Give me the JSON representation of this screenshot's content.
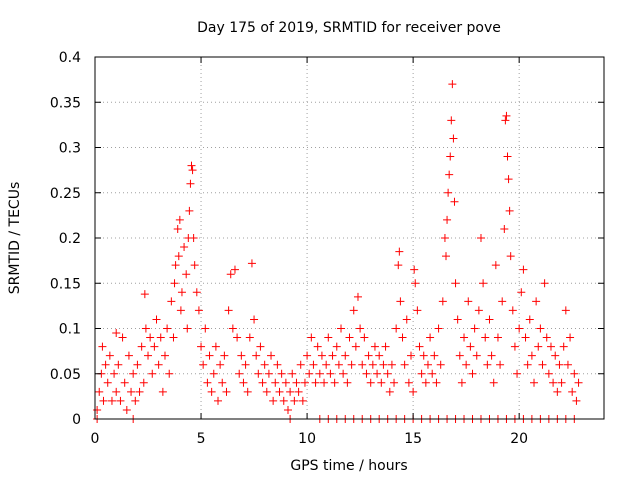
{
  "chart_data": {
    "type": "scatter",
    "title": "Day 175 of 2019, SRMTID for receiver pove",
    "xlabel": "GPS time / hours",
    "ylabel": "SRMTID / TECUs",
    "xlim": [
      0,
      24
    ],
    "ylim": [
      0,
      0.4
    ],
    "xticks": [
      0,
      5,
      10,
      15,
      20
    ],
    "yticks": [
      0,
      0.05,
      0.1,
      0.15,
      0.2,
      0.25,
      0.3,
      0.35,
      0.4
    ],
    "xtick_labels": [
      "0",
      "5",
      "10",
      "15",
      "20"
    ],
    "ytick_labels": [
      "0",
      "0.05",
      "0.1",
      "0.15",
      "0.2",
      "0.25",
      "0.3",
      "0.35",
      "0.4"
    ],
    "grid": true,
    "marker": "+",
    "color": "#ff0000",
    "series": [
      {
        "name": "SRMTID",
        "points": [
          [
            0.1,
            0.01
          ],
          [
            0.2,
            0.03
          ],
          [
            0.3,
            0.05
          ],
          [
            0.35,
            0.08
          ],
          [
            0.4,
            0.02
          ],
          [
            0.5,
            0.06
          ],
          [
            0.6,
            0.04
          ],
          [
            0.7,
            0.07
          ],
          [
            0.8,
            0.02
          ],
          [
            0.9,
            0.05
          ],
          [
            1.0,
            0.03
          ],
          [
            1.0,
            0.095
          ],
          [
            1.1,
            0.06
          ],
          [
            1.2,
            0.02
          ],
          [
            1.3,
            0.09
          ],
          [
            1.4,
            0.04
          ],
          [
            1.5,
            0.01
          ],
          [
            1.6,
            0.07
          ],
          [
            1.7,
            0.03
          ],
          [
            1.8,
            0.05
          ],
          [
            1.9,
            0.02
          ],
          [
            2.0,
            0.06
          ],
          [
            2.1,
            0.03
          ],
          [
            2.2,
            0.08
          ],
          [
            2.3,
            0.04
          ],
          [
            2.35,
            0.138
          ],
          [
            2.4,
            0.1
          ],
          [
            2.5,
            0.07
          ],
          [
            2.6,
            0.09
          ],
          [
            2.7,
            0.05
          ],
          [
            2.8,
            0.08
          ],
          [
            2.9,
            0.11
          ],
          [
            3.0,
            0.06
          ],
          [
            3.1,
            0.09
          ],
          [
            3.2,
            0.03
          ],
          [
            3.3,
            0.07
          ],
          [
            3.4,
            0.1
          ],
          [
            3.5,
            0.05
          ],
          [
            3.6,
            0.13
          ],
          [
            3.7,
            0.09
          ],
          [
            3.75,
            0.15
          ],
          [
            3.8,
            0.17
          ],
          [
            3.9,
            0.21
          ],
          [
            3.95,
            0.18
          ],
          [
            4.0,
            0.22
          ],
          [
            4.05,
            0.12
          ],
          [
            4.1,
            0.14
          ],
          [
            4.2,
            0.19
          ],
          [
            4.3,
            0.16
          ],
          [
            4.35,
            0.1
          ],
          [
            4.4,
            0.2
          ],
          [
            4.45,
            0.23
          ],
          [
            4.5,
            0.26
          ],
          [
            4.55,
            0.28
          ],
          [
            4.6,
            0.275
          ],
          [
            4.65,
            0.2
          ],
          [
            4.7,
            0.17
          ],
          [
            4.8,
            0.14
          ],
          [
            4.9,
            0.12
          ],
          [
            5.0,
            0.08
          ],
          [
            5.1,
            0.06
          ],
          [
            5.2,
            0.1
          ],
          [
            5.3,
            0.04
          ],
          [
            5.4,
            0.07
          ],
          [
            5.5,
            0.03
          ],
          [
            5.6,
            0.05
          ],
          [
            5.7,
            0.08
          ],
          [
            5.8,
            0.02
          ],
          [
            5.9,
            0.06
          ],
          [
            6.0,
            0.04
          ],
          [
            6.1,
            0.07
          ],
          [
            6.2,
            0.03
          ],
          [
            6.3,
            0.12
          ],
          [
            6.4,
            0.16
          ],
          [
            6.5,
            0.1
          ],
          [
            6.6,
            0.165
          ],
          [
            6.7,
            0.09
          ],
          [
            6.8,
            0.05
          ],
          [
            6.9,
            0.07
          ],
          [
            7.0,
            0.04
          ],
          [
            7.1,
            0.06
          ],
          [
            7.2,
            0.03
          ],
          [
            7.3,
            0.09
          ],
          [
            7.4,
            0.172
          ],
          [
            7.5,
            0.11
          ],
          [
            7.6,
            0.07
          ],
          [
            7.7,
            0.05
          ],
          [
            7.8,
            0.08
          ],
          [
            7.9,
            0.04
          ],
          [
            8.0,
            0.06
          ],
          [
            8.1,
            0.03
          ],
          [
            8.2,
            0.05
          ],
          [
            8.3,
            0.07
          ],
          [
            8.4,
            0.02
          ],
          [
            8.5,
            0.04
          ],
          [
            8.6,
            0.06
          ],
          [
            8.7,
            0.03
          ],
          [
            8.8,
            0.05
          ],
          [
            8.9,
            0.02
          ],
          [
            9.0,
            0.04
          ],
          [
            9.1,
            0.01
          ],
          [
            9.2,
            0.03
          ],
          [
            9.3,
            0.05
          ],
          [
            9.4,
            0.02
          ],
          [
            9.5,
            0.04
          ],
          [
            9.6,
            0.03
          ],
          [
            9.7,
            0.06
          ],
          [
            9.8,
            0.02
          ],
          [
            9.9,
            0.04
          ],
          [
            10.0,
            0.07
          ],
          [
            10.1,
            0.05
          ],
          [
            10.2,
            0.09
          ],
          [
            10.3,
            0.06
          ],
          [
            10.4,
            0.04
          ],
          [
            10.5,
            0.08
          ],
          [
            10.6,
            0.05
          ],
          [
            10.7,
            0.07
          ],
          [
            10.8,
            0.04
          ],
          [
            10.9,
            0.06
          ],
          [
            11.0,
            0.09
          ],
          [
            11.1,
            0.05
          ],
          [
            11.2,
            0.07
          ],
          [
            11.3,
            0.04
          ],
          [
            11.4,
            0.08
          ],
          [
            11.5,
            0.06
          ],
          [
            11.6,
            0.1
          ],
          [
            11.7,
            0.05
          ],
          [
            11.8,
            0.07
          ],
          [
            11.9,
            0.04
          ],
          [
            12.0,
            0.09
          ],
          [
            12.1,
            0.06
          ],
          [
            12.2,
            0.12
          ],
          [
            12.3,
            0.08
          ],
          [
            12.4,
            0.135
          ],
          [
            12.5,
            0.1
          ],
          [
            12.6,
            0.06
          ],
          [
            12.7,
            0.09
          ],
          [
            12.8,
            0.05
          ],
          [
            12.9,
            0.07
          ],
          [
            13.0,
            0.04
          ],
          [
            13.1,
            0.06
          ],
          [
            13.2,
            0.08
          ],
          [
            13.3,
            0.05
          ],
          [
            13.4,
            0.07
          ],
          [
            13.5,
            0.04
          ],
          [
            13.6,
            0.06
          ],
          [
            13.7,
            0.08
          ],
          [
            13.8,
            0.05
          ],
          [
            13.9,
            0.03
          ],
          [
            14.0,
            0.06
          ],
          [
            14.1,
            0.04
          ],
          [
            14.2,
            0.1
          ],
          [
            14.3,
            0.17
          ],
          [
            14.35,
            0.185
          ],
          [
            14.4,
            0.13
          ],
          [
            14.5,
            0.09
          ],
          [
            14.6,
            0.06
          ],
          [
            14.7,
            0.11
          ],
          [
            14.8,
            0.04
          ],
          [
            14.9,
            0.07
          ],
          [
            15.0,
            0.03
          ],
          [
            15.05,
            0.165
          ],
          [
            15.1,
            0.15
          ],
          [
            15.2,
            0.12
          ],
          [
            15.3,
            0.08
          ],
          [
            15.4,
            0.05
          ],
          [
            15.5,
            0.07
          ],
          [
            15.6,
            0.04
          ],
          [
            15.7,
            0.06
          ],
          [
            15.8,
            0.09
          ],
          [
            15.9,
            0.05
          ],
          [
            16.0,
            0.07
          ],
          [
            16.1,
            0.04
          ],
          [
            16.2,
            0.1
          ],
          [
            16.3,
            0.06
          ],
          [
            16.4,
            0.13
          ],
          [
            16.5,
            0.2
          ],
          [
            16.55,
            0.18
          ],
          [
            16.6,
            0.22
          ],
          [
            16.65,
            0.25
          ],
          [
            16.7,
            0.27
          ],
          [
            16.75,
            0.29
          ],
          [
            16.8,
            0.33
          ],
          [
            16.85,
            0.37
          ],
          [
            16.9,
            0.31
          ],
          [
            16.95,
            0.24
          ],
          [
            17.0,
            0.15
          ],
          [
            17.1,
            0.11
          ],
          [
            17.2,
            0.07
          ],
          [
            17.3,
            0.04
          ],
          [
            17.4,
            0.09
          ],
          [
            17.5,
            0.06
          ],
          [
            17.6,
            0.13
          ],
          [
            17.7,
            0.08
          ],
          [
            17.8,
            0.05
          ],
          [
            17.9,
            0.1
          ],
          [
            18.0,
            0.07
          ],
          [
            18.1,
            0.12
          ],
          [
            18.2,
            0.2
          ],
          [
            18.3,
            0.15
          ],
          [
            18.4,
            0.09
          ],
          [
            18.5,
            0.06
          ],
          [
            18.6,
            0.11
          ],
          [
            18.7,
            0.07
          ],
          [
            18.8,
            0.04
          ],
          [
            18.9,
            0.17
          ],
          [
            19.0,
            0.09
          ],
          [
            19.1,
            0.06
          ],
          [
            19.2,
            0.13
          ],
          [
            19.3,
            0.21
          ],
          [
            19.35,
            0.33
          ],
          [
            19.4,
            0.335
          ],
          [
            19.45,
            0.29
          ],
          [
            19.5,
            0.265
          ],
          [
            19.55,
            0.23
          ],
          [
            19.6,
            0.18
          ],
          [
            19.7,
            0.12
          ],
          [
            19.8,
            0.08
          ],
          [
            19.9,
            0.05
          ],
          [
            20.0,
            0.1
          ],
          [
            20.1,
            0.14
          ],
          [
            20.2,
            0.165
          ],
          [
            20.3,
            0.09
          ],
          [
            20.4,
            0.06
          ],
          [
            20.5,
            0.11
          ],
          [
            20.6,
            0.07
          ],
          [
            20.7,
            0.04
          ],
          [
            20.8,
            0.13
          ],
          [
            20.9,
            0.08
          ],
          [
            21.0,
            0.1
          ],
          [
            21.1,
            0.06
          ],
          [
            21.2,
            0.15
          ],
          [
            21.3,
            0.09
          ],
          [
            21.4,
            0.05
          ],
          [
            21.5,
            0.08
          ],
          [
            21.6,
            0.04
          ],
          [
            21.7,
            0.07
          ],
          [
            21.8,
            0.03
          ],
          [
            21.9,
            0.06
          ],
          [
            22.0,
            0.04
          ],
          [
            22.1,
            0.08
          ],
          [
            22.2,
            0.12
          ],
          [
            22.3,
            0.06
          ],
          [
            22.4,
            0.09
          ],
          [
            22.5,
            0.03
          ],
          [
            22.6,
            0.05
          ],
          [
            22.7,
            0.02
          ],
          [
            22.8,
            0.04
          ],
          [
            0.1,
            0.0
          ],
          [
            1.8,
            0.0
          ],
          [
            9.2,
            0.0
          ],
          [
            10.6,
            0.0
          ],
          [
            11.0,
            0.0
          ],
          [
            11.4,
            0.0
          ],
          [
            11.8,
            0.0
          ],
          [
            12.2,
            0.0
          ],
          [
            12.6,
            0.0
          ],
          [
            13.0,
            0.0
          ],
          [
            13.4,
            0.0
          ],
          [
            13.8,
            0.0
          ],
          [
            14.2,
            0.0
          ],
          [
            14.6,
            0.0
          ],
          [
            15.0,
            0.0
          ],
          [
            15.4,
            0.0
          ],
          [
            15.8,
            0.0
          ],
          [
            16.2,
            0.0
          ],
          [
            16.6,
            0.0
          ],
          [
            17.0,
            0.0
          ],
          [
            17.4,
            0.0
          ],
          [
            17.8,
            0.0
          ],
          [
            18.2,
            0.0
          ],
          [
            18.6,
            0.0
          ],
          [
            19.0,
            0.0
          ],
          [
            19.4,
            0.0
          ],
          [
            19.8,
            0.0
          ],
          [
            20.2,
            0.0
          ],
          [
            20.6,
            0.0
          ],
          [
            21.0,
            0.0
          ],
          [
            21.4,
            0.0
          ],
          [
            21.8,
            0.0
          ],
          [
            22.2,
            0.0
          ],
          [
            22.6,
            0.0
          ]
        ]
      }
    ]
  }
}
